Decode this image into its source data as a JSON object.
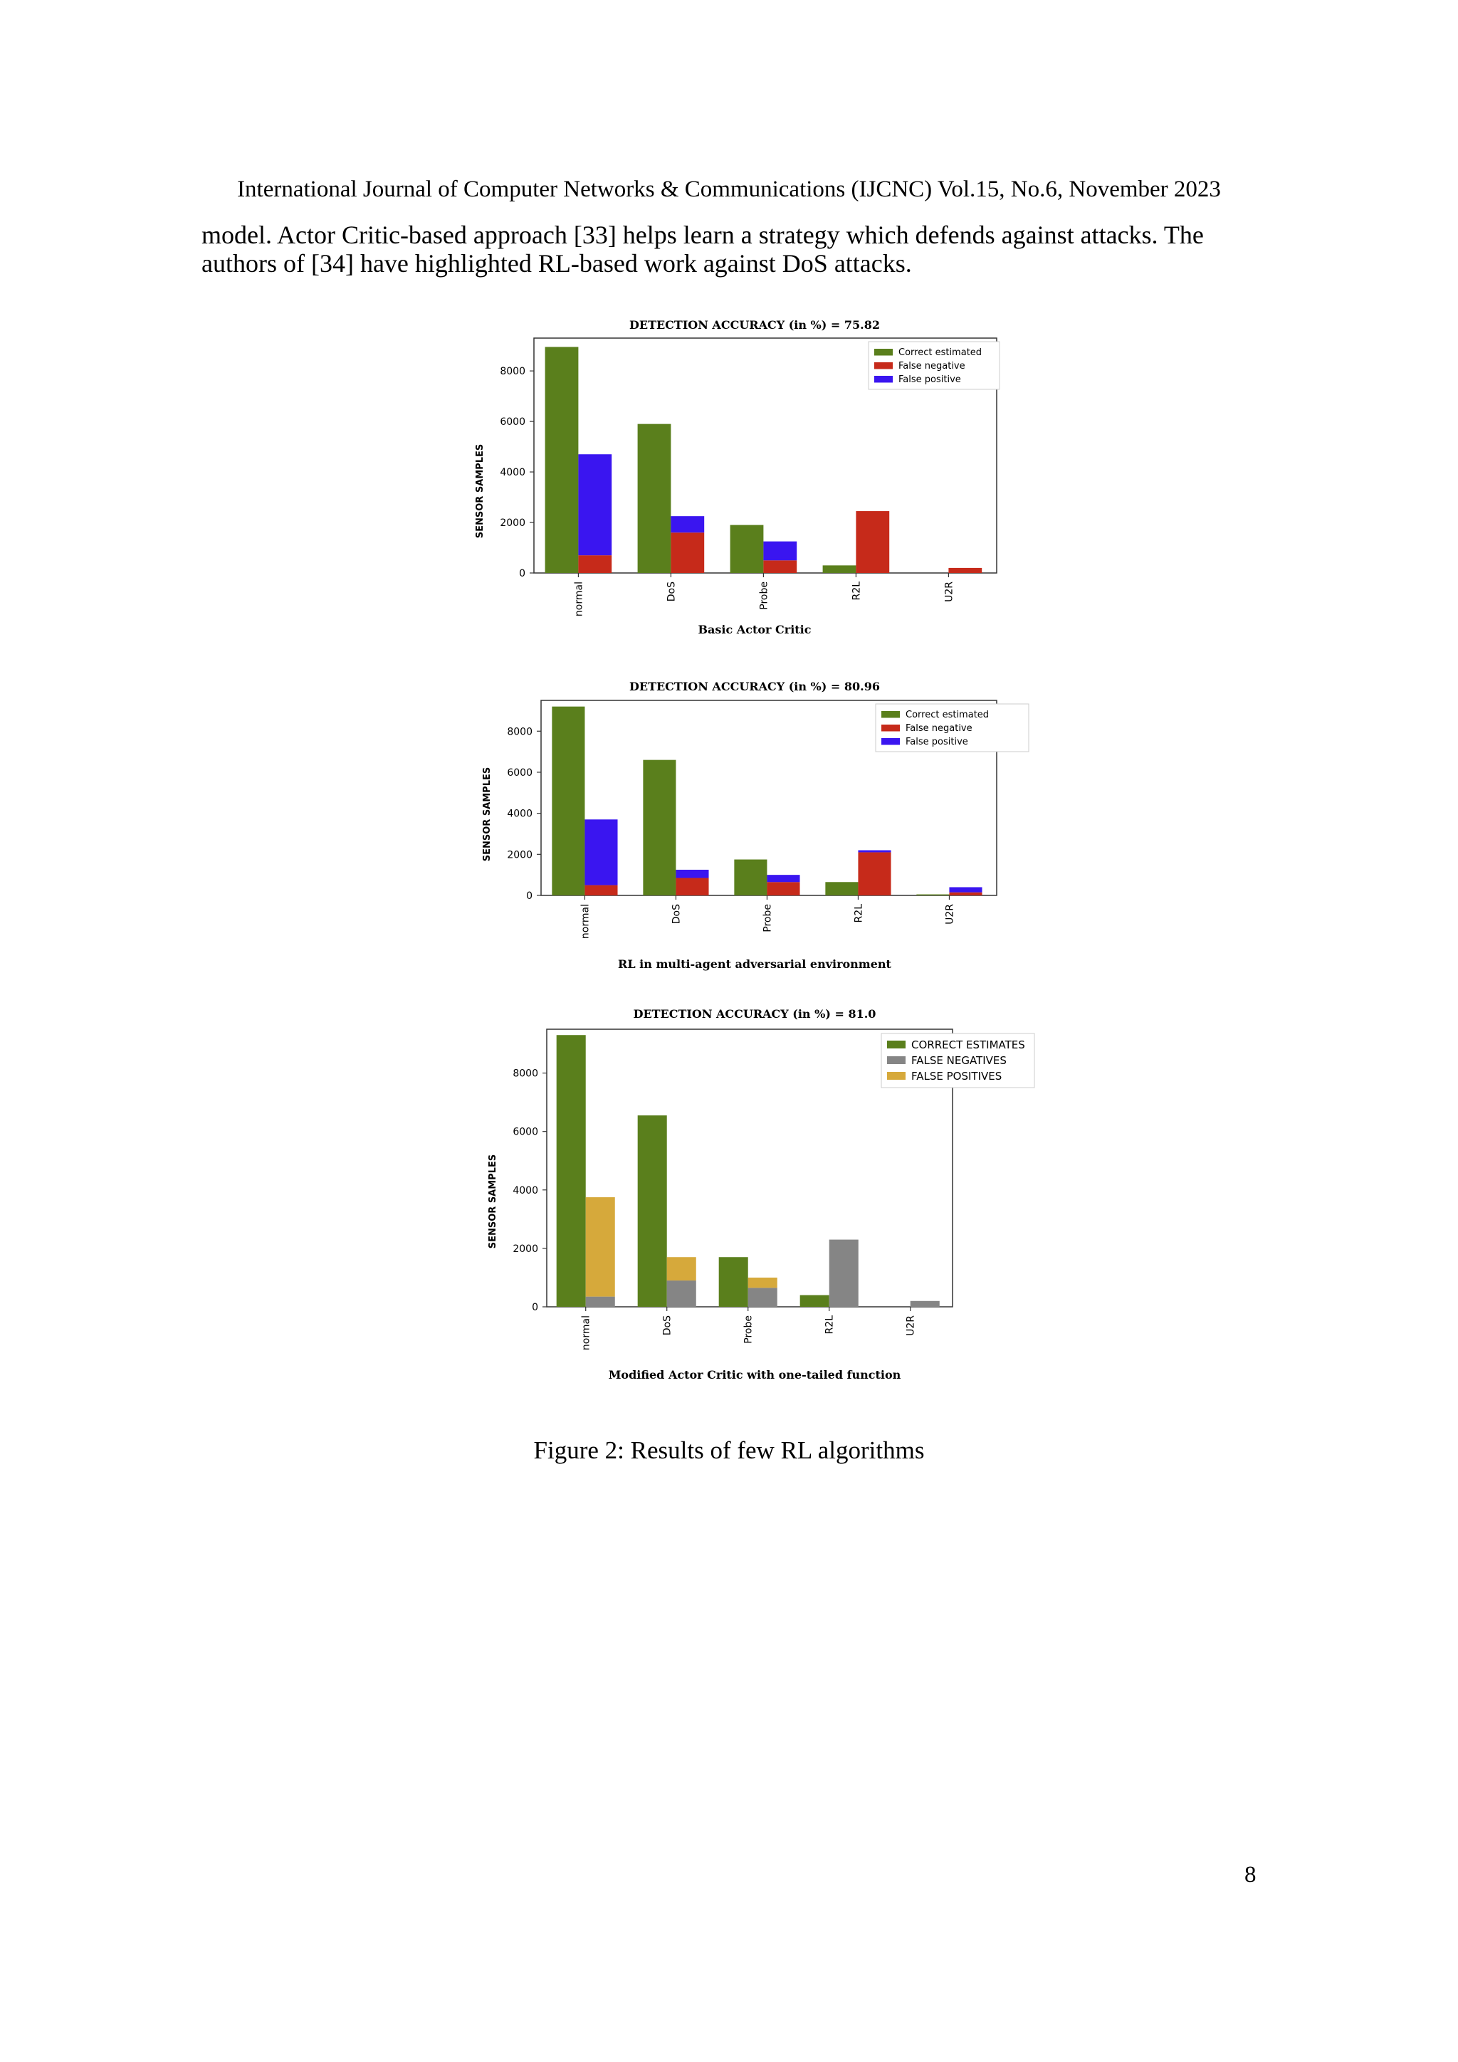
{
  "header": "International Journal of Computer Networks & Communications (IJCNC) Vol.15, No.6, November 2023",
  "body_text": [
    "model. Actor Critic-based approach [33] helps learn a strategy which defends against attacks. The",
    "authors of [34] have highlighted RL-based work against DoS attacks."
  ],
  "figure_caption": "Figure 2: Results of few RL algorithms",
  "page_number": "8",
  "chart_data": [
    {
      "type": "bar",
      "title": "DETECTION ACCURACY (in %) = 75.82",
      "subtitle": "Basic Actor Critic",
      "ylabel": "SENSOR SAMPLES",
      "xlabel": "",
      "categories": [
        "normal",
        "DoS",
        "Probe",
        "R2L",
        "U2R"
      ],
      "yticks": [
        0,
        2000,
        4000,
        6000,
        8000
      ],
      "ylim": [
        0,
        9300
      ],
      "grid": false,
      "legend_position": "top-right",
      "series": [
        {
          "name": "Correct estimated",
          "color": "#5a7f1c",
          "values": [
            8950,
            5900,
            1900,
            300,
            0
          ]
        },
        {
          "name": "False negative",
          "color": "#c62a1a",
          "values": [
            700,
            1600,
            500,
            2450,
            200
          ]
        },
        {
          "name": "False positive",
          "color": "#3a15f0",
          "values": [
            4000,
            650,
            750,
            0,
            0
          ]
        }
      ]
    },
    {
      "type": "bar",
      "title": "DETECTION ACCURACY (in %) = 80.96",
      "subtitle": "RL in multi-agent adversarial environment",
      "ylabel": "SENSOR SAMPLES",
      "xlabel": "",
      "categories": [
        "normal",
        "DoS",
        "Probe",
        "R2L",
        "U2R"
      ],
      "yticks": [
        0,
        2000,
        4000,
        6000,
        8000
      ],
      "ylim": [
        0,
        9500
      ],
      "grid": false,
      "legend_position": "top-right",
      "series": [
        {
          "name": "Correct estimated",
          "color": "#5a7f1c",
          "values": [
            9200,
            6600,
            1750,
            650,
            50
          ]
        },
        {
          "name": "False negative",
          "color": "#c62a1a",
          "values": [
            500,
            850,
            650,
            2100,
            150
          ]
        },
        {
          "name": "False positive",
          "color": "#3a15f0",
          "values": [
            3200,
            400,
            350,
            100,
            250
          ]
        }
      ]
    },
    {
      "type": "bar",
      "title": "DETECTION ACCURACY (in %) = 81.0",
      "subtitle": "Modified Actor Critic with one-tailed function",
      "ylabel": "SENSOR SAMPLES",
      "xlabel": "",
      "categories": [
        "normal",
        "DoS",
        "Probe",
        "R2L",
        "U2R"
      ],
      "yticks": [
        0,
        2000,
        4000,
        6000,
        8000
      ],
      "ylim": [
        0,
        9500
      ],
      "grid": false,
      "legend_position": "top-right",
      "series": [
        {
          "name": "CORRECT ESTIMATES",
          "color": "#5a7f1c",
          "values": [
            9300,
            6550,
            1700,
            400,
            0
          ]
        },
        {
          "name": "FALSE NEGATIVES",
          "color": "#858585",
          "values": [
            350,
            900,
            650,
            2300,
            200
          ]
        },
        {
          "name": "FALSE POSITIVES",
          "color": "#d6a93b",
          "values": [
            3400,
            800,
            350,
            0,
            0
          ]
        }
      ]
    }
  ]
}
